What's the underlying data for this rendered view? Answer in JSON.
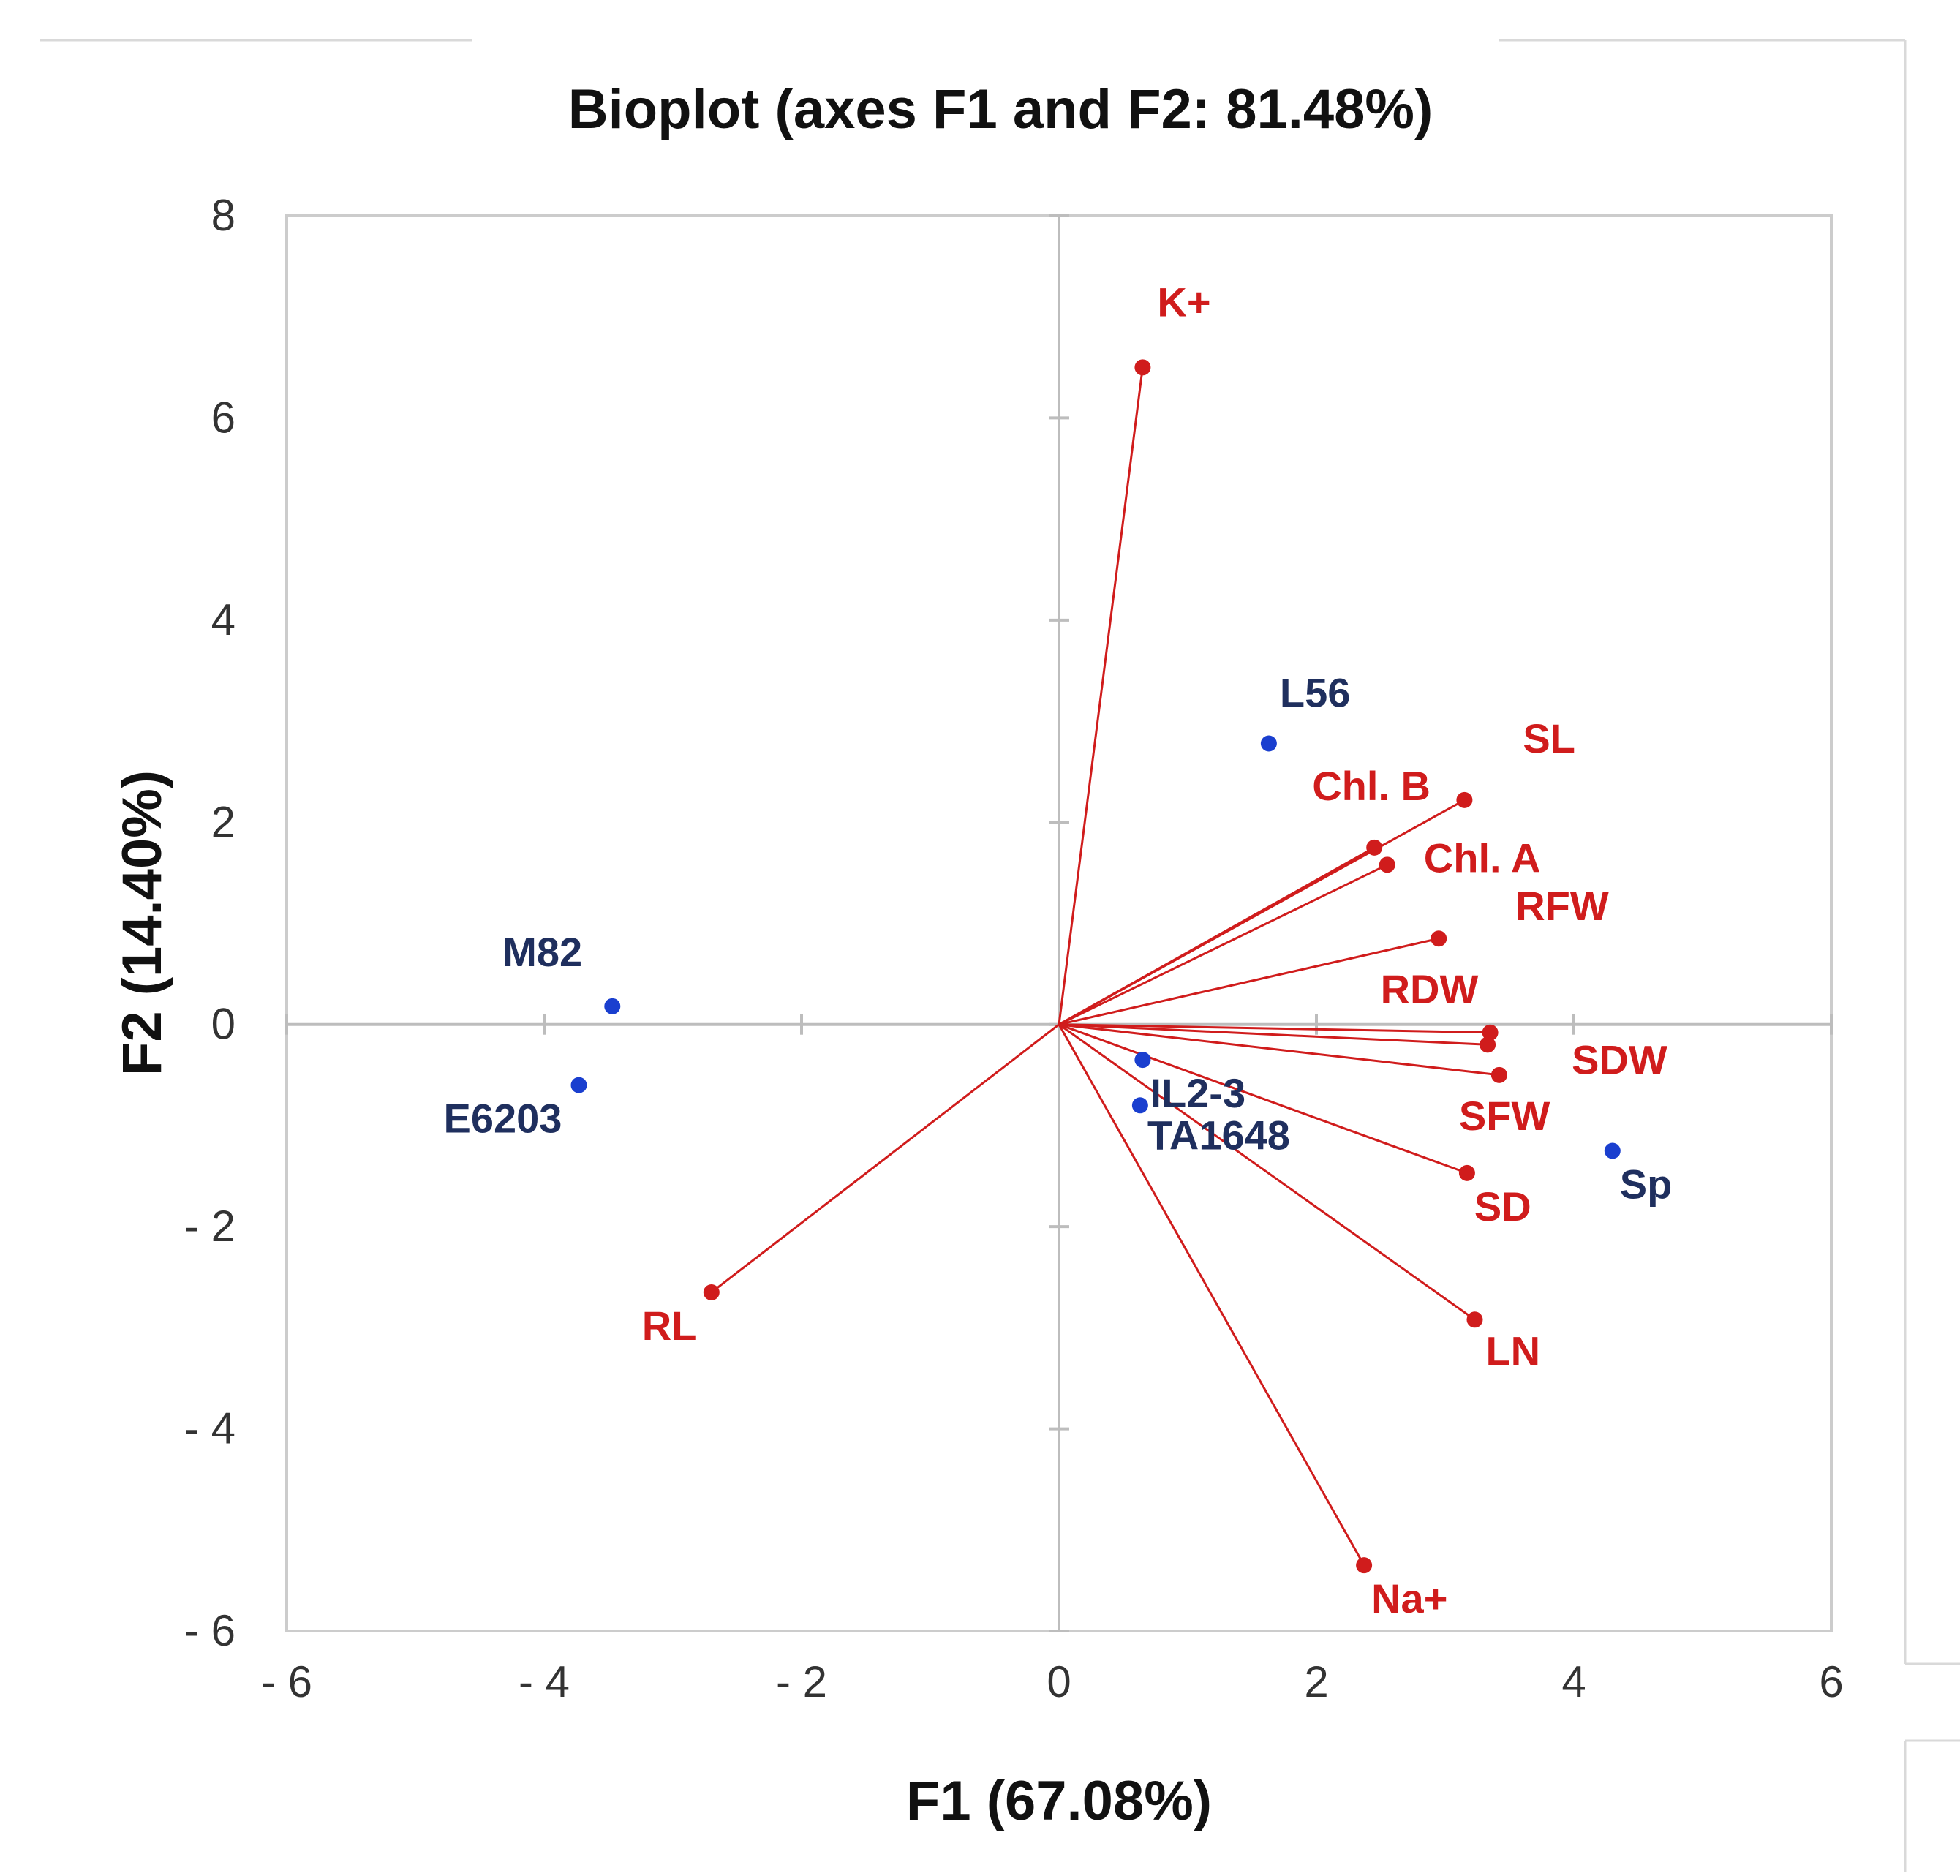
{
  "chart_data": {
    "type": "scatter",
    "subtype": "pca-biplot",
    "title": "Bioplot (axes F1 and F2: 81.48%)",
    "xlabel": "F1 (67.08%)",
    "ylabel": "F2 (14.40%)",
    "xlim": [
      -6,
      6
    ],
    "ylim": [
      -6,
      8
    ],
    "x_ticks": [
      -6,
      -4,
      -2,
      0,
      2,
      4,
      6
    ],
    "y_ticks": [
      -6,
      -4,
      -2,
      0,
      2,
      4,
      6,
      8
    ],
    "x_tick_labels": [
      "- 6",
      "- 4",
      "- 2",
      "0",
      "2",
      "4",
      "6"
    ],
    "y_tick_labels": [
      "- 6",
      "- 4",
      "- 2",
      "0",
      "2",
      "4",
      "6",
      "8"
    ],
    "grid": false,
    "colors": {
      "variables": "#d01c1c",
      "observations": "#1a3fcf",
      "observation_labels": "#1f2f5e",
      "axis_lines": "#bdbdbd",
      "frame": "#cccccc"
    },
    "variables": [
      {
        "name": "K+",
        "x": 0.65,
        "y": 6.5
      },
      {
        "name": "SL",
        "x": 3.15,
        "y": 2.22
      },
      {
        "name": "Chl. B",
        "x": 2.45,
        "y": 1.75
      },
      {
        "name": "Chl. A",
        "x": 2.55,
        "y": 1.58
      },
      {
        "name": "RFW",
        "x": 2.95,
        "y": 0.85
      },
      {
        "name": "RDW",
        "x": 3.35,
        "y": -0.08
      },
      {
        "name": "SDW",
        "x": 3.33,
        "y": -0.2
      },
      {
        "name": "SFW",
        "x": 3.42,
        "y": -0.5
      },
      {
        "name": "SD",
        "x": 3.17,
        "y": -1.47
      },
      {
        "name": "LN",
        "x": 3.23,
        "y": -2.92
      },
      {
        "name": "Na+",
        "x": 2.37,
        "y": -5.35
      },
      {
        "name": "RL",
        "x": -2.7,
        "y": -2.65
      }
    ],
    "observations": [
      {
        "name": "L56",
        "x": 1.63,
        "y": 2.78
      },
      {
        "name": "M82",
        "x": -3.47,
        "y": 0.18
      },
      {
        "name": "E6203",
        "x": -3.73,
        "y": -0.6
      },
      {
        "name": "IL2-3",
        "x": 0.65,
        "y": -0.35
      },
      {
        "name": "TA1648",
        "x": 0.63,
        "y": -0.8
      },
      {
        "name": "Sp",
        "x": 4.3,
        "y": -1.25
      }
    ]
  }
}
